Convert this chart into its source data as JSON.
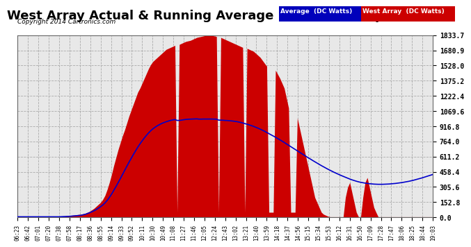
{
  "title": "West Array Actual & Running Average Power Sun Sep 7 19:16",
  "copyright": "Copyright 2014 Cartronics.com",
  "legend_labels": [
    "Average  (DC Watts)",
    "West Array  (DC Watts)"
  ],
  "background_color": "#ffffff",
  "plot_bg": "#e8e8e8",
  "yticks": [
    0.0,
    152.8,
    305.6,
    458.4,
    611.2,
    764.0,
    916.8,
    1069.6,
    1222.4,
    1375.2,
    1528.0,
    1680.9,
    1833.7
  ],
  "ymax": 1833.7,
  "title_fontsize": 13,
  "xtick_labels": [
    "06:23",
    "06:42",
    "07:01",
    "07:20",
    "07:38",
    "07:58",
    "08:17",
    "08:36",
    "08:55",
    "09:14",
    "09:33",
    "09:52",
    "10:11",
    "10:30",
    "10:49",
    "11:08",
    "11:27",
    "11:46",
    "12:05",
    "12:24",
    "12:43",
    "13:02",
    "13:21",
    "13:40",
    "13:59",
    "14:18",
    "14:37",
    "14:56",
    "15:15",
    "15:34",
    "15:53",
    "16:12",
    "16:31",
    "16:50",
    "17:09",
    "17:28",
    "17:47",
    "18:06",
    "18:25",
    "18:44",
    "19:03"
  ],
  "west_array": [
    5,
    5,
    5,
    5,
    5,
    5,
    5,
    5,
    5,
    5,
    5,
    5,
    5,
    5,
    5,
    5,
    5,
    5,
    5,
    5,
    8,
    10,
    12,
    15,
    18,
    20,
    22,
    25,
    28,
    30,
    35,
    40,
    50,
    60,
    75,
    90,
    110,
    130,
    150,
    180,
    220,
    280,
    350,
    430,
    520,
    600,
    680,
    750,
    820,
    880,
    950,
    1020,
    1080,
    1140,
    1200,
    1260,
    1300,
    1350,
    1400,
    1450,
    1500,
    1540,
    1570,
    1590,
    1610,
    1630,
    1650,
    1670,
    1690,
    1700,
    1710,
    1720,
    1730,
    50,
    1740,
    1750,
    1760,
    1770,
    1775,
    1780,
    1790,
    1800,
    1810,
    1815,
    1820,
    1825,
    1830,
    1833,
    1833,
    1830,
    1825,
    1820,
    50,
    1810,
    1800,
    1790,
    1780,
    1770,
    1760,
    1750,
    1740,
    1730,
    1720,
    1710,
    50,
    1700,
    1690,
    1680,
    1670,
    1650,
    1630,
    1610,
    1580,
    1550,
    1520,
    50,
    50,
    50,
    1480,
    1440,
    1400,
    1350,
    1300,
    1200,
    1100,
    50,
    50,
    50,
    1000,
    900,
    800,
    700,
    600,
    500,
    400,
    300,
    200,
    150,
    100,
    50,
    30,
    20,
    10,
    5,
    5,
    5,
    5,
    5,
    5,
    5,
    200,
    300,
    350,
    250,
    150,
    50,
    5,
    5,
    200,
    350,
    400,
    300,
    200,
    100,
    50,
    5,
    5,
    5,
    5,
    5,
    5,
    5,
    5,
    5,
    5,
    5,
    5,
    5,
    5,
    5,
    5,
    5,
    5,
    5,
    5,
    5,
    5,
    5,
    5,
    5,
    5
  ],
  "avg_power": [
    5,
    5,
    5,
    5,
    5,
    5,
    5,
    5,
    5,
    5,
    5,
    5,
    5,
    5,
    5,
    5,
    5,
    5,
    5,
    5,
    6,
    7,
    8,
    9,
    10,
    12,
    14,
    16,
    18,
    20,
    25,
    30,
    38,
    46,
    56,
    66,
    78,
    92,
    107,
    124,
    145,
    170,
    200,
    233,
    270,
    308,
    348,
    389,
    431,
    473,
    514,
    555,
    594,
    633,
    670,
    706,
    739,
    770,
    799,
    826,
    851,
    873,
    892,
    908,
    922,
    934,
    945,
    954,
    962,
    969,
    975,
    980,
    984,
    975,
    975,
    978,
    982,
    985,
    987,
    988,
    989,
    990,
    991,
    988,
    988,
    989,
    989,
    989,
    989,
    989,
    988,
    988,
    978,
    978,
    977,
    975,
    974,
    972,
    970,
    967,
    964,
    960,
    955,
    950,
    943,
    937,
    930,
    923,
    915,
    906,
    897,
    887,
    877,
    866,
    854,
    842,
    830,
    818,
    806,
    793,
    780,
    767,
    753,
    739,
    725,
    711,
    697,
    683,
    669,
    655,
    641,
    627,
    613,
    599,
    586,
    572,
    559,
    546,
    533,
    520,
    508,
    496,
    484,
    473,
    462,
    451,
    441,
    431,
    421,
    412,
    403,
    394,
    385,
    377,
    370,
    363,
    357,
    352,
    348,
    344,
    341,
    338,
    336,
    334,
    333,
    332,
    332,
    332,
    333,
    334,
    335,
    337,
    339,
    341,
    344,
    347,
    350,
    354,
    358,
    362,
    367,
    372,
    378,
    384,
    390,
    396,
    403,
    410,
    417,
    424,
    431,
    438,
    446,
    453,
    461,
    469,
    477,
    485,
    494,
    502,
    511
  ]
}
